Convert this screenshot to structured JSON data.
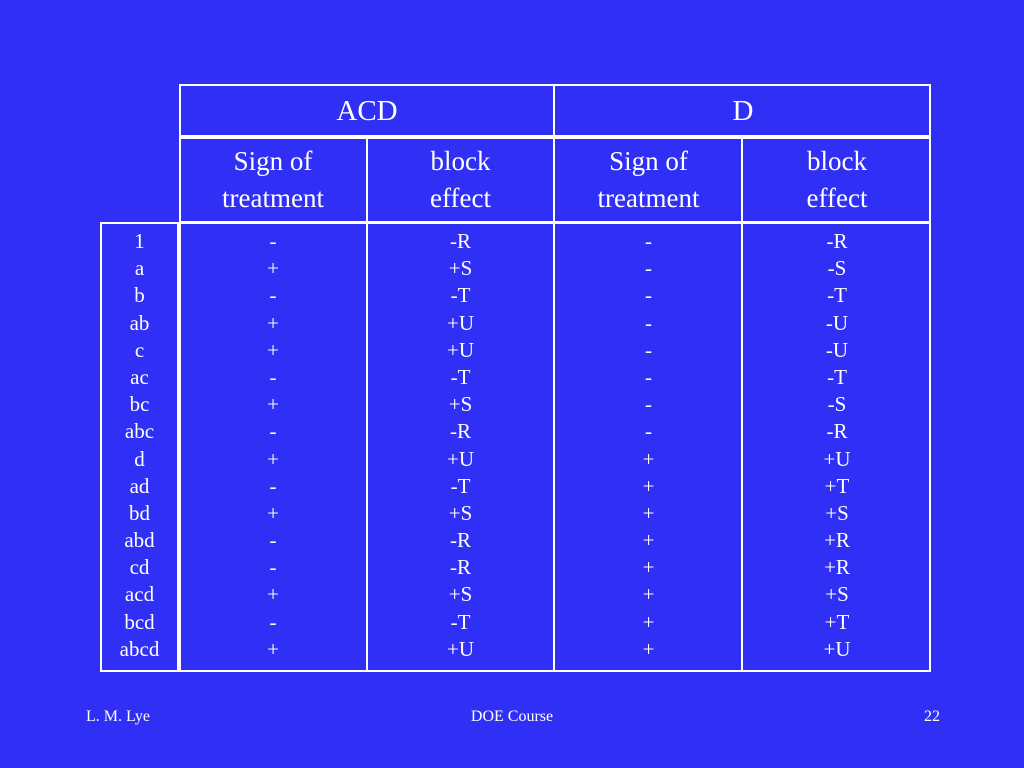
{
  "groups": [
    {
      "title": "ACD"
    },
    {
      "title": "D"
    }
  ],
  "column_headers": [
    {
      "line1": "Sign of",
      "line2": "treatment"
    },
    {
      "line1": "block",
      "line2": "effect"
    },
    {
      "line1": "Sign of",
      "line2": "treatment"
    },
    {
      "line1": "block",
      "line2": "effect"
    }
  ],
  "rows": [
    "1",
    "a",
    "b",
    "ab",
    "c",
    "ac",
    "bc",
    "abc",
    "d",
    "ad",
    "bd",
    "abd",
    "cd",
    "acd",
    "bcd",
    "abcd"
  ],
  "acd_sign": [
    "-",
    "+",
    "-",
    "+",
    "+",
    "-",
    "+",
    "-",
    "+",
    "-",
    "+",
    "-",
    "-",
    "+",
    "-",
    "+"
  ],
  "acd_block": [
    "-R",
    "+S",
    "-T",
    "+U",
    "+U",
    "-T",
    "+S",
    "-R",
    "+U",
    "-T",
    "+S",
    "-R",
    "-R",
    "+S",
    "-T",
    "+U"
  ],
  "d_sign": [
    "-",
    "-",
    "-",
    "-",
    "-",
    "-",
    "-",
    "-",
    "+",
    "+",
    "+",
    "+",
    "+",
    "+",
    "+",
    "+"
  ],
  "d_block": [
    "-R",
    "-S",
    "-T",
    "-U",
    "-U",
    "-T",
    "-S",
    "-R",
    "+U",
    "+T",
    "+S",
    "+R",
    "+R",
    "+S",
    "+T",
    "+U"
  ],
  "footer": {
    "author": "L. M. Lye",
    "course": "DOE Course",
    "page": "22"
  }
}
